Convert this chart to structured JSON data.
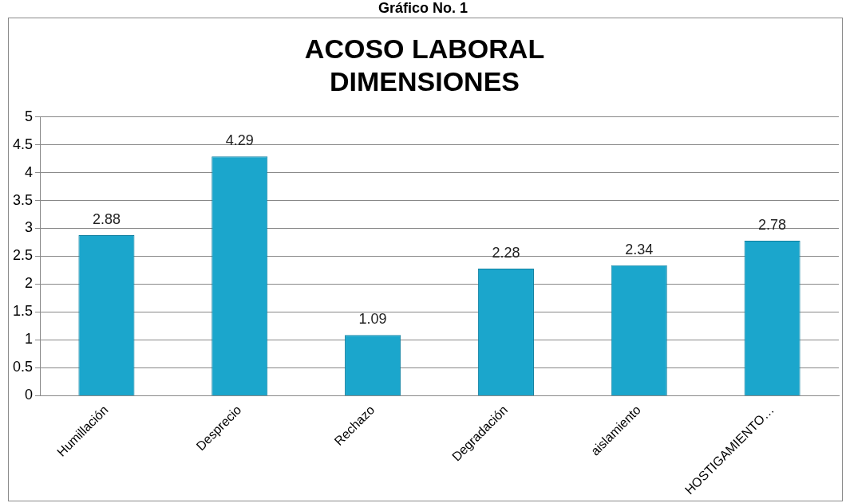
{
  "chart_data": {
    "type": "bar",
    "title": "ACOSO LABORAL\nDIMENSIONES",
    "annotations": [
      "Gráfico No. 1"
    ],
    "categories": [
      "Humillación",
      "Desprecio",
      "Rechazo",
      "Degradación",
      "aislamiento",
      "HOSTIGAMIENTO…"
    ],
    "values": [
      2.88,
      4.29,
      1.09,
      2.28,
      2.34,
      2.78
    ],
    "color": "#1ba6cc",
    "ylim": [
      0,
      5
    ],
    "yticks": [
      0,
      0.5,
      1,
      1.5,
      2,
      2.5,
      3,
      3.5,
      4,
      4.5,
      5
    ],
    "grid": "y",
    "legend": false,
    "data_labels": true
  }
}
